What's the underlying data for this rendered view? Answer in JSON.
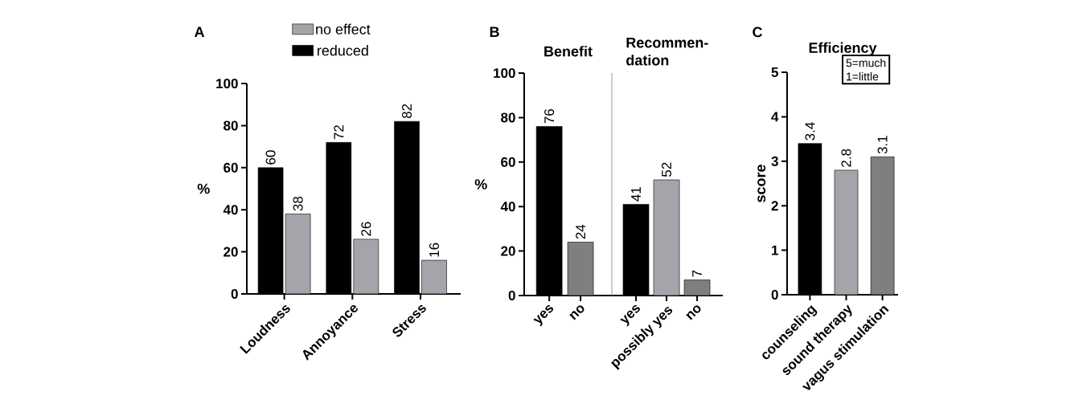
{
  "chart_data": [
    {
      "type": "bar",
      "categories": [
        "Loudness",
        "Annoyance",
        "Stress"
      ],
      "series": [
        {
          "name": "reduced",
          "color": "#000000",
          "values": [
            60,
            72,
            82
          ]
        },
        {
          "name": "no effect",
          "color": "#a5a4aa",
          "values": [
            38,
            26,
            16
          ]
        }
      ],
      "ylabel": "%",
      "ylim": [
        0,
        100
      ],
      "yticks": [
        0,
        20,
        40,
        60,
        80,
        100
      ],
      "data_labels": true,
      "legend": "top",
      "annotations": [
        "A"
      ]
    },
    {
      "type": "bar",
      "title": "Benefit",
      "categories": [
        "yes",
        "no"
      ],
      "values": [
        76,
        24
      ],
      "colors": [
        "#000000",
        "#7f7f7f"
      ],
      "ylabel": "%",
      "ylim": [
        0,
        100
      ],
      "yticks": [
        0,
        20,
        40,
        60,
        80,
        100
      ],
      "data_labels": true,
      "annotations": [
        "B"
      ]
    },
    {
      "type": "bar",
      "title": "Recommen-dation",
      "categories": [
        "yes",
        "possibly yes",
        "no"
      ],
      "values": [
        41,
        52,
        7
      ],
      "colors": [
        "#000000",
        "#a5a4aa",
        "#7f7f7f"
      ],
      "ylim": [
        0,
        100
      ],
      "tick_labels": "x",
      "data_labels": true
    },
    {
      "type": "bar",
      "title": "Efficiency",
      "categories": [
        "counseling",
        "sound therapy",
        "vagus stimulation"
      ],
      "values": [
        3.4,
        2.8,
        3.1
      ],
      "colors": [
        "#000000",
        "#a5a4aa",
        "#7f7f7f"
      ],
      "ylabel": "score",
      "ylim": [
        0,
        5
      ],
      "yticks": [
        0,
        1,
        2,
        3,
        4,
        5
      ],
      "data_labels": true,
      "annotations": [
        "C",
        "5=much",
        "1=little"
      ]
    }
  ]
}
